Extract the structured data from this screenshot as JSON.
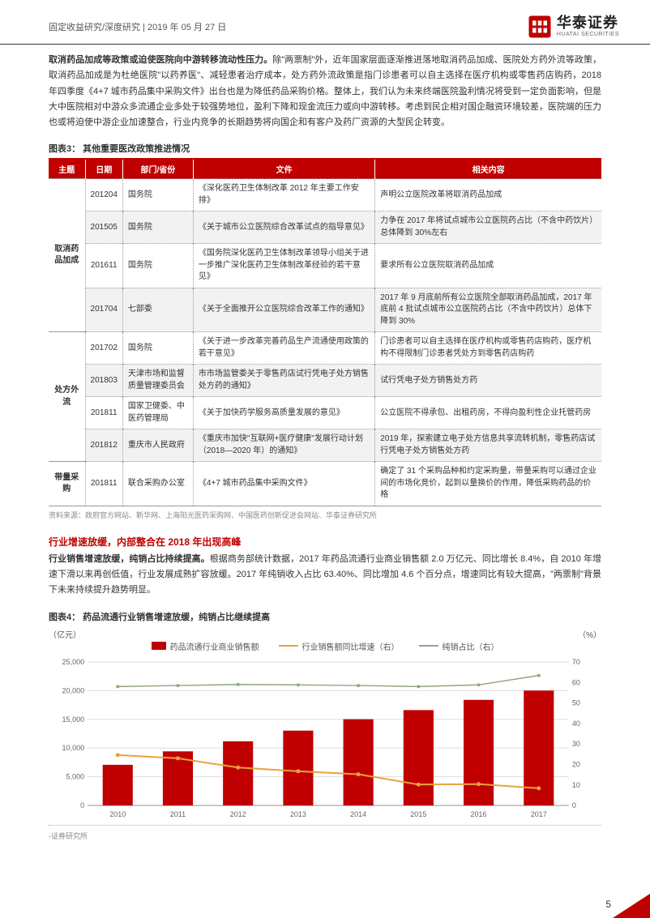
{
  "header": {
    "left": "固定收益研究/深度研究 | 2019 年 05 月 27 日",
    "logo_cn": "华泰证券",
    "logo_en": "HUATAI SECURITIES",
    "logo_color": "#c00000"
  },
  "intro": {
    "bold": "取消药品加成等政策或迫使医院向中游转移流动性压力。",
    "rest": "除\"两票制\"外，近年国家层面逐渐推进落地取消药品加成、医院处方药外流等政策，取消药品加成是为杜绝医院\"以药养医\"、减轻患者治疗成本，处方药外流政策是指门诊患者可以自主选择在医疗机构或零售药店购药，2018 年四季度《4+7 城市药品集中采购文件》出台也是为降低药品采购价格。整体上，我们认为未来终端医院盈利情况将受到一定负面影响，但是大中医院相对中游众多流通企业多处于较强势地位，盈利下降和现金流压力或向中游转移。考虑到民企相对国企融资环境较差，医院端的压力也或将迫使中游企业加速整合，行业内竞争的长期趋势将向国企和有客户及药厂资源的大型民企转变。"
  },
  "table3": {
    "title": "图表3：   其他重要医改政策推进情况",
    "headers": [
      "主题",
      "日期",
      "部门/省份",
      "文件",
      "相关内容"
    ],
    "groups": [
      {
        "topic": "取消药品加成",
        "rows": [
          {
            "date": "201204",
            "dept": "国务院",
            "doc": "《深化医药卫生体制改革 2012 年主要工作安排》",
            "content": "声明公立医院改革将取消药品加成",
            "alt": false
          },
          {
            "date": "201505",
            "dept": "国务院",
            "doc": "《关于城市公立医院综合改革试点的指导意见》",
            "content": "力争在 2017 年将试点城市公立医院药占比（不含中药饮片）总体降到 30%左右",
            "alt": true
          },
          {
            "date": "201611",
            "dept": "国务院",
            "doc": "《国务院深化医药卫生体制改革领导小组关于进一步推广深化医药卫生体制改革经验的若干意见》",
            "content": "要求所有公立医院取消药品加成",
            "alt": false
          },
          {
            "date": "201704",
            "dept": "七部委",
            "doc": "《关于全面推开公立医院综合改革工作的通知》",
            "content": "2017 年 9 月底前所有公立医院全部取消药品加成，2017 年底前 4 批试点城市公立医院药占比（不含中药饮片）总体下降到 30%",
            "alt": true
          }
        ]
      },
      {
        "topic": "处方外流",
        "rows": [
          {
            "date": "201702",
            "dept": "国务院",
            "doc": "《关于进一步改革完善药品生产流通使用政策的若干意见》",
            "content": "门诊患者可以自主选择在医疗机构或零售药店购药，医疗机构不得限制门诊患者凭处方到零售药店购药",
            "alt": false
          },
          {
            "date": "201803",
            "dept": "天津市场和监督质量管理委员会",
            "doc": "市市场监管委关于零售药店试行凭电子处方销售处方药的通知》",
            "content": "试行凭电子处方销售处方药",
            "alt": true
          },
          {
            "date": "201811",
            "dept": "国家卫健委、中医药管理局",
            "doc": "《关于加快药学服务高质量发展的意见》",
            "content": "公立医院不得承包、出租药房，不得向盈利性企业托管药房",
            "alt": false
          },
          {
            "date": "201812",
            "dept": "重庆市人民政府",
            "doc": "《重庆市加快\"互联网+医疗健康\"发展行动计划（2018—2020 年）的通知》",
            "content": "2019 年，探索建立电子处方信息共享流转机制，零售药店试行凭电子处方销售处方药",
            "alt": true
          }
        ]
      },
      {
        "topic": "带量采购",
        "rows": [
          {
            "date": "201811",
            "dept": "联合采购办公室",
            "doc": "《4+7 城市药品集中采购文件》",
            "content": "确定了 31 个采购品种和约定采购量，带量采购可以通过企业间的市场化竞价，起到以量换价的作用，降低采购药品的价格",
            "alt": false
          }
        ]
      }
    ],
    "source": "资料来源：政府官方网站、新华网、上海阳光医药采购网、中国医药创新促进会网站、华泰证券研究所"
  },
  "section2": {
    "head": "行业增速放缓，内部整合在 2018 年出现高峰",
    "bold": "行业销售增速放缓，纯销占比持续提高。",
    "text": "根据商务部统计数据，2017 年药品流通行业商业销售额 2.0 万亿元、同比增长 8.4%，自 2010 年增速下滑以来再创低值，行业发展成熟扩容放缓。2017 年纯销收入占比 63.40%、同比增加 4.6 个百分点，增速同比有较大提高，\"两票制\"背景下未来持续提升趋势明显。"
  },
  "chart4": {
    "title": "图表4：   药品流通行业销售增速放缓，纯销占比继续提高",
    "y_left_label": "（亿元）",
    "y_right_label": "（%）",
    "legend": {
      "bar": "药品流通行业商业销售额",
      "line_orange": "行业销售额同比增速（右）",
      "line_green": "纯销占比（右）"
    },
    "categories": [
      "2010",
      "2011",
      "2012",
      "2013",
      "2014",
      "2015",
      "2016",
      "2017"
    ],
    "bar_values": [
      7084,
      9426,
      11174,
      13036,
      15021,
      16613,
      18393,
      20016
    ],
    "growth_pct": [
      24.6,
      23.0,
      18.5,
      16.7,
      15.2,
      10.2,
      10.4,
      8.4
    ],
    "pure_pct": [
      58.0,
      58.5,
      59.0,
      58.8,
      58.5,
      58.0,
      58.8,
      63.4
    ],
    "y_left_ticks": [
      0,
      5000,
      10000,
      15000,
      20000,
      25000
    ],
    "y_right_ticks": [
      0,
      10,
      20,
      30,
      40,
      50,
      60,
      70
    ],
    "colors": {
      "bar": "#c00000",
      "line_orange": "#e8a33d",
      "line_green": "#8fa77f",
      "grid": "#dddddd",
      "axis": "#999999"
    },
    "source": "-证券研究所"
  },
  "page_number": "5"
}
